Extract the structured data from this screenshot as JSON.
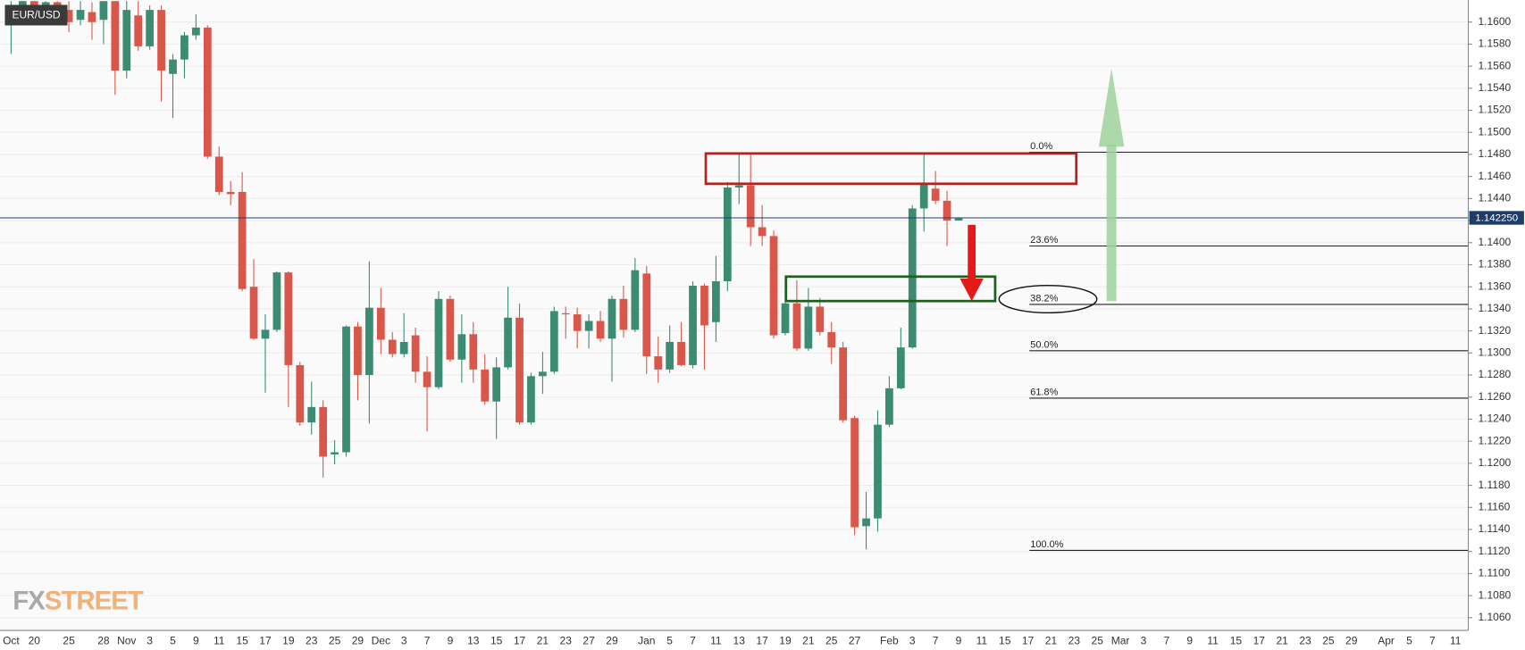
{
  "chart_data": {
    "type": "candlestick",
    "title": "EUR/USD",
    "categories": [
      "Oct",
      null,
      "20",
      null,
      null,
      "25",
      null,
      null,
      "28",
      null,
      "Nov",
      null,
      "3",
      null,
      "5",
      null,
      "9",
      null,
      "11",
      null,
      "15",
      null,
      "17",
      null,
      "19",
      null,
      "23",
      null,
      "25",
      null,
      "29",
      null,
      "Dec",
      null,
      "3",
      null,
      "7",
      null,
      "9",
      null,
      "13",
      null,
      "15",
      null,
      "17",
      null,
      "21",
      null,
      "23",
      null,
      "27",
      null,
      "29",
      null,
      null,
      "Jan",
      null,
      "5",
      null,
      "7",
      null,
      "11",
      null,
      "13",
      null,
      "17",
      null,
      "19",
      null,
      "21",
      null,
      "25",
      null,
      "27",
      null,
      null,
      "Feb",
      null,
      "3",
      null,
      "7",
      null,
      "9",
      null,
      "11",
      null,
      "15",
      null,
      "17",
      null,
      "21",
      null,
      "23",
      null,
      "25",
      null,
      "Mar",
      null,
      "3",
      null,
      "7",
      null,
      "9",
      null,
      "11",
      null,
      "15",
      null,
      "17",
      null,
      "21",
      null,
      "23",
      null,
      "25",
      null,
      "29",
      null,
      null,
      "Apr",
      null,
      "5",
      null,
      "7",
      null,
      "11"
    ],
    "open": [
      1.16,
      1.1611,
      1.1619,
      1.1611,
      1.1618,
      1.1611,
      1.1602,
      1.1609,
      1.1602,
      1.1619,
      1.1556,
      1.1606,
      1.1578,
      1.1611,
      1.1553,
      1.1566,
      1.1588,
      1.1595,
      1.1478,
      1.1446,
      1.1446,
      1.136,
      1.1313,
      1.1321,
      1.1373,
      1.1289,
      1.1237,
      1.1251,
      1.1208,
      1.121,
      1.1324,
      1.128,
      1.1341,
      1.1312,
      1.1299,
      1.1316,
      1.1283,
      1.1269,
      1.1349,
      1.1294,
      1.1317,
      1.1285,
      1.1256,
      1.1287,
      1.1332,
      1.1237,
      1.1279,
      1.1283,
      1.1336,
      1.1335,
      1.132,
      1.1329,
      1.1313,
      1.1349,
      1.1321,
      1.1372,
      1.1297,
      1.1285,
      1.131,
      1.1289,
      1.1361,
      1.1328,
      1.1365,
      1.145,
      1.1452,
      1.1414,
      1.1406,
      1.1318,
      1.1345,
      1.1304,
      1.1342,
      1.1319,
      1.1305,
      1.1241,
      1.1143,
      1.115,
      1.1235,
      1.1268,
      1.1305,
      1.1431,
      1.1449,
      1.1438,
      1.142,
      null,
      null,
      null,
      null,
      null,
      null,
      null,
      null,
      null,
      null,
      null,
      null,
      null,
      null,
      null,
      null,
      null,
      null,
      null,
      null,
      null,
      null,
      null,
      null,
      null,
      null,
      null,
      null,
      null,
      null,
      null,
      null,
      null,
      null,
      null,
      null,
      null,
      null,
      null,
      null,
      null,
      null,
      null
    ],
    "high": [
      1.1619,
      1.1619,
      1.1619,
      1.1619,
      1.1619,
      1.1619,
      1.1619,
      1.1618,
      1.1619,
      1.1619,
      1.1619,
      1.1619,
      1.1615,
      1.1615,
      1.1571,
      1.1591,
      1.1607,
      1.1597,
      1.1487,
      1.1456,
      1.1464,
      1.1385,
      1.1335,
      1.1374,
      1.1374,
      1.1292,
      1.1274,
      1.1257,
      1.1221,
      1.1325,
      1.1328,
      1.1383,
      1.1359,
      1.1319,
      1.1336,
      1.1323,
      1.1297,
      1.1356,
      1.1352,
      1.1335,
      1.1328,
      1.1299,
      1.1296,
      1.136,
      1.1345,
      1.1282,
      1.1301,
      1.1342,
      1.1342,
      1.1341,
      1.1335,
      1.1338,
      1.1352,
      1.1361,
      1.1386,
      1.1379,
      1.1315,
      1.1325,
      1.1328,
      1.1365,
      1.1363,
      1.1388,
      1.1455,
      1.1481,
      1.1482,
      1.1434,
      1.1411,
      1.1366,
      1.1366,
      1.1359,
      1.135,
      1.1328,
      1.131,
      1.1243,
      1.1174,
      1.1248,
      1.1279,
      1.1323,
      1.1434,
      1.1482,
      1.1465,
      1.1447,
      1.1423,
      null,
      null,
      null,
      null,
      null,
      null,
      null,
      null,
      null,
      null,
      null,
      null,
      null,
      null,
      null,
      null,
      null,
      null,
      null,
      null,
      null,
      null,
      null,
      null,
      null,
      null,
      null,
      null,
      null,
      null,
      null,
      null,
      null,
      null,
      null,
      null,
      null,
      null,
      null,
      null,
      null,
      null,
      null
    ],
    "low": [
      1.1571,
      1.1606,
      1.1609,
      1.1606,
      1.1604,
      1.1591,
      1.1597,
      1.1584,
      1.158,
      1.1534,
      1.1549,
      1.1574,
      1.1575,
      1.1528,
      1.1513,
      1.1549,
      1.1584,
      1.1476,
      1.1443,
      1.1434,
      1.1356,
      1.1312,
      1.1264,
      1.1319,
      1.1251,
      1.1234,
      1.1226,
      1.1187,
      1.1199,
      1.1206,
      1.1257,
      1.1236,
      1.1299,
      1.1296,
      1.1296,
      1.1273,
      1.1229,
      1.1267,
      1.1292,
      1.1273,
      1.1273,
      1.1253,
      1.1222,
      1.1285,
      1.1235,
      1.1235,
      1.1263,
      1.1281,
      1.1313,
      1.1304,
      1.1304,
      1.131,
      1.1274,
      1.1314,
      1.1319,
      1.1281,
      1.1273,
      1.1282,
      1.1288,
      1.1286,
      1.1285,
      1.131,
      1.1356,
      1.1435,
      1.1397,
      1.1397,
      1.1313,
      1.1316,
      1.1302,
      1.1302,
      1.1316,
      1.129,
      1.1237,
      1.1135,
      1.1122,
      1.1138,
      1.1233,
      1.1267,
      1.1304,
      1.141,
      1.1435,
      1.1397,
      1.142,
      null,
      null,
      null,
      null,
      null,
      null,
      null,
      null,
      null,
      null,
      null,
      null,
      null,
      null,
      null,
      null,
      null,
      null,
      null,
      null,
      null,
      null,
      null,
      null,
      null,
      null,
      null,
      null,
      null,
      null,
      null,
      null,
      null,
      null,
      null,
      null,
      null,
      null,
      null,
      null,
      null,
      null,
      null
    ],
    "close": [
      1.1615,
      1.1619,
      1.1612,
      1.1618,
      1.1609,
      1.16,
      1.1611,
      1.16,
      1.1619,
      1.1556,
      1.1611,
      1.1578,
      1.1611,
      1.1556,
      1.1566,
      1.1588,
      1.1595,
      1.1478,
      1.1446,
      1.1444,
      1.1358,
      1.1313,
      1.1321,
      1.1373,
      1.1289,
      1.1237,
      1.1251,
      1.1206,
      1.121,
      1.1324,
      1.128,
      1.1341,
      1.1312,
      1.1299,
      1.131,
      1.1283,
      1.1269,
      1.1349,
      1.1294,
      1.1317,
      1.1285,
      1.1256,
      1.1287,
      1.1332,
      1.1237,
      1.1279,
      1.1283,
      1.1338,
      1.1335,
      1.132,
      1.1329,
      1.1313,
      1.1349,
      1.1321,
      1.1375,
      1.1297,
      1.1285,
      1.131,
      1.1289,
      1.1361,
      1.1325,
      1.1365,
      1.145,
      1.1452,
      1.1414,
      1.1406,
      1.1316,
      1.1345,
      1.1304,
      1.1342,
      1.1319,
      1.1305,
      1.1239,
      1.1142,
      1.115,
      1.1235,
      1.1268,
      1.1305,
      1.1431,
      1.1453,
      1.1438,
      1.142,
      1.1422,
      null,
      null,
      null,
      null,
      null,
      null,
      null,
      null,
      null,
      null,
      null,
      null,
      null,
      null,
      null,
      null,
      null,
      null,
      null,
      null,
      null,
      null,
      null,
      null,
      null,
      null,
      null,
      null,
      null,
      null,
      null,
      null,
      null,
      null,
      null,
      null,
      null,
      null,
      null,
      null,
      null,
      null,
      null
    ],
    "up_color": "#3c8c73",
    "down_color": "#d9574a",
    "ylim": [
      1.1048,
      1.162
    ],
    "yticks": [
      {
        "value": 1.106,
        "label": "1.1060"
      },
      {
        "value": 1.108,
        "label": "1.1080"
      },
      {
        "value": 1.11,
        "label": "1.1100"
      },
      {
        "value": 1.112,
        "label": "1.1120"
      },
      {
        "value": 1.114,
        "label": "1.1140"
      },
      {
        "value": 1.116,
        "label": "1.1160"
      },
      {
        "value": 1.118,
        "label": "1.1180"
      },
      {
        "value": 1.12,
        "label": "1.1200"
      },
      {
        "value": 1.122,
        "label": "1.1220"
      },
      {
        "value": 1.124,
        "label": "1.1240"
      },
      {
        "value": 1.126,
        "label": "1.1260"
      },
      {
        "value": 1.128,
        "label": "1.1280"
      },
      {
        "value": 1.13,
        "label": "1.1300"
      },
      {
        "value": 1.132,
        "label": "1.1320"
      },
      {
        "value": 1.134,
        "label": "1.1340"
      },
      {
        "value": 1.136,
        "label": "1.1360"
      },
      {
        "value": 1.138,
        "label": "1.1380"
      },
      {
        "value": 1.14,
        "label": "1.1400"
      },
      {
        "value": 1.142,
        "label": "1.1420"
      },
      {
        "value": 1.144,
        "label": "1.1440"
      },
      {
        "value": 1.146,
        "label": "1.1460"
      },
      {
        "value": 1.148,
        "label": "1.1480"
      },
      {
        "value": 1.15,
        "label": "1.1500"
      },
      {
        "value": 1.152,
        "label": "1.1520"
      },
      {
        "value": 1.154,
        "label": "1.1540"
      },
      {
        "value": 1.156,
        "label": "1.1560"
      },
      {
        "value": 1.158,
        "label": "1.1580"
      },
      {
        "value": 1.16,
        "label": "1.1600"
      }
    ],
    "grid": true,
    "current_price": {
      "value": 1.14225,
      "label": "1.142250",
      "color": "#1e3d6b"
    },
    "fibonacci": {
      "color": "#222222",
      "levels": [
        {
          "value": 1.1482,
          "label": "0.0%"
        },
        {
          "value": 1.1397,
          "label": "23.6%"
        },
        {
          "value": 1.1344,
          "label": "38.2%"
        },
        {
          "value": 1.1302,
          "label": "50.0%"
        },
        {
          "value": 1.1259,
          "label": "61.8%"
        },
        {
          "value": 1.1121,
          "label": "100.0%"
        }
      ]
    }
  },
  "watermark": {
    "left": "FX",
    "right": "STREET"
  }
}
